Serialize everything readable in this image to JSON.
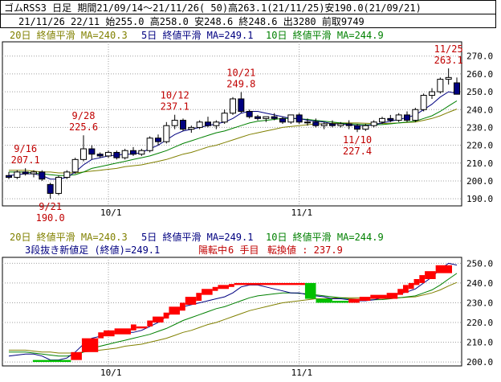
{
  "header": {
    "line1": "ゴムRSS3 日足 期間21/09/14～21/11/26( 50)高263.1(21/11/25)安190.0(21/09/21)",
    "line2": "21/11/26 22/11 始255.0 高258.0 安248.6 終248.6 出3280 前取9749"
  },
  "colors": {
    "ma5": "#000080",
    "ma10": "#008000",
    "ma20": "#808000",
    "up": "#ffffff",
    "down": "#000080",
    "brick_up": "#ff0000",
    "brick_down": "#00c000",
    "annotation": "#c00000"
  },
  "top_legend": {
    "ma20": "20日 終値平滑 MA=240.3",
    "ma5": "5日 終値平滑 MA=249.1",
    "ma10": "10日 終値平滑 MA=244.9"
  },
  "bottom_legend": {
    "ma20": "20日 終値平滑 MA=240.3",
    "ma5": "5日 終値平滑 MA=249.1",
    "ma10": "10日 終値平滑 MA=244.9",
    "status_prefix": "3段抜き新値足 (終値)=249.1",
    "status_trend": "陽転中",
    "status_count": "6 手目",
    "status_turn": "転換値 : 237.9"
  },
  "chart_data": [
    {
      "type": "candlestick",
      "y_ticks": [
        "190.0",
        "200.0",
        "210.0",
        "220.0",
        "230.0",
        "240.0",
        "250.0",
        "260.0",
        "270.0"
      ],
      "ylim": [
        186,
        278
      ],
      "x_labels": [
        {
          "label": "10/1",
          "index": 12
        },
        {
          "label": "11/1",
          "index": 35
        }
      ],
      "annotations": [
        {
          "date": "9/16",
          "value": "207.1",
          "index": 2
        },
        {
          "date": "9/21",
          "value": "190.0",
          "index": 5
        },
        {
          "date": "9/28",
          "value": "225.6",
          "index": 9
        },
        {
          "date": "10/12",
          "value": "237.1",
          "index": 20
        },
        {
          "date": "10/21",
          "value": "249.8",
          "index": 28
        },
        {
          "date": "11/10",
          "value": "227.4",
          "index": 42
        },
        {
          "date": "11/25",
          "value": "263.1",
          "index": 53
        }
      ],
      "candles": [
        [
          203,
          205,
          201,
          202
        ],
        [
          202,
          206,
          201,
          205
        ],
        [
          205,
          207.1,
          203,
          204
        ],
        [
          204,
          206,
          202,
          205
        ],
        [
          205,
          206,
          200,
          201
        ],
        [
          198,
          199,
          190,
          193
        ],
        [
          193,
          203,
          192,
          202
        ],
        [
          202,
          206,
          201,
          205
        ],
        [
          205,
          213,
          204,
          212
        ],
        [
          212,
          225.6,
          211,
          218
        ],
        [
          218,
          220,
          212,
          215
        ],
        [
          215,
          216,
          213,
          214
        ],
        [
          214,
          217,
          213,
          216
        ],
        [
          216,
          217,
          212,
          213
        ],
        [
          213,
          218,
          212,
          217
        ],
        [
          217,
          219,
          214,
          215
        ],
        [
          215,
          218,
          214,
          217
        ],
        [
          217,
          225,
          216,
          224
        ],
        [
          224,
          226,
          220,
          222
        ],
        [
          222,
          233,
          221,
          231
        ],
        [
          231,
          237.1,
          229,
          234
        ],
        [
          234,
          235,
          228,
          229
        ],
        [
          229,
          231,
          227,
          230
        ],
        [
          230,
          234,
          229,
          233
        ],
        [
          233,
          236,
          230,
          231
        ],
        [
          231,
          234,
          229,
          233
        ],
        [
          233,
          240,
          232,
          238
        ],
        [
          238,
          247,
          237,
          246
        ],
        [
          246,
          249.8,
          238,
          239
        ],
        [
          239,
          240,
          235,
          236
        ],
        [
          236,
          237,
          234,
          235
        ],
        [
          235,
          236,
          233,
          236
        ],
        [
          236,
          238,
          234,
          235
        ],
        [
          235,
          236,
          232,
          233
        ],
        [
          233,
          237,
          232,
          237
        ],
        [
          237,
          238,
          232,
          233
        ],
        [
          233,
          235,
          231,
          233
        ],
        [
          233,
          235,
          230,
          231
        ],
        [
          231,
          233,
          229,
          232
        ],
        [
          232,
          234,
          230,
          231
        ],
        [
          231,
          233,
          230,
          232
        ],
        [
          232,
          234,
          229,
          231
        ],
        [
          231,
          232,
          227.4,
          229
        ],
        [
          229,
          232,
          228,
          231
        ],
        [
          231,
          234,
          230,
          233
        ],
        [
          233,
          236,
          232,
          235
        ],
        [
          235,
          237,
          233,
          234
        ],
        [
          234,
          238,
          233,
          237
        ],
        [
          237,
          239,
          233,
          234
        ],
        [
          234,
          241,
          233,
          240
        ],
        [
          240,
          249,
          239,
          248
        ],
        [
          248,
          252,
          246,
          250
        ],
        [
          250,
          258,
          249,
          257
        ],
        [
          257,
          263.1,
          254,
          258
        ],
        [
          255,
          258,
          248.6,
          248.6
        ]
      ],
      "ma5": [
        203,
        203.5,
        204,
        204,
        203,
        201,
        201,
        202,
        205,
        209,
        212,
        213,
        214,
        214.5,
        215,
        215,
        216,
        218,
        220,
        223,
        226,
        228,
        229,
        230,
        231,
        232,
        233,
        235,
        238,
        239,
        239,
        238,
        237,
        236,
        235,
        235,
        234,
        233.5,
        233,
        232,
        232,
        231.5,
        231,
        231,
        231.5,
        232.5,
        233.5,
        234.5,
        235.5,
        237,
        240,
        243,
        247,
        250,
        249.1
      ],
      "ma10": [
        205,
        205,
        205,
        204.5,
        204,
        203.5,
        203,
        203,
        203.5,
        205,
        207,
        208,
        209,
        210,
        211,
        212,
        213,
        214,
        215.5,
        217,
        219,
        221,
        222.5,
        224,
        225.5,
        227,
        228,
        229.5,
        231,
        232.5,
        233.5,
        234,
        234.5,
        235,
        235,
        234.8,
        234.5,
        234,
        233.5,
        233,
        232.5,
        232,
        231.8,
        231.5,
        231.5,
        231.6,
        232,
        232.5,
        233,
        233.5,
        235,
        236.5,
        239,
        242,
        244.9
      ],
      "ma20": [
        206,
        206,
        206,
        205.5,
        205,
        205,
        204.5,
        204.5,
        204.5,
        205,
        205.5,
        206,
        206.5,
        207,
        208,
        208.5,
        209,
        210,
        211,
        212,
        213.5,
        215,
        216,
        217.5,
        219,
        220,
        221.5,
        223,
        224.5,
        226,
        227,
        228,
        229,
        230,
        230.5,
        231,
        231.5,
        232,
        232,
        232.3,
        232.5,
        232.5,
        232.5,
        232.3,
        232.2,
        232.2,
        232.3,
        232.5,
        232.8,
        233,
        234,
        235,
        236.5,
        238.5,
        240.3
      ]
    },
    {
      "type": "new-value-bricks",
      "y_ticks": [
        "200.0",
        "210.0",
        "220.0",
        "230.0",
        "240.0",
        "250.0"
      ],
      "ylim": [
        198,
        253
      ],
      "x_labels": [
        {
          "label": "10/1",
          "index": 12
        },
        {
          "label": "11/1",
          "index": 35
        }
      ],
      "bricks": [
        {
          "from": 5,
          "to": 12,
          "lo": 200,
          "hi": 201,
          "dir": "down"
        },
        {
          "from": 12,
          "to": 14,
          "lo": 201,
          "hi": 205,
          "dir": "up"
        },
        {
          "from": 14,
          "to": 17,
          "lo": 205,
          "hi": 212,
          "dir": "up"
        },
        {
          "from": 17,
          "to": 18,
          "lo": 212,
          "hi": 215,
          "dir": "up"
        },
        {
          "from": 18,
          "to": 20,
          "lo": 213,
          "hi": 216,
          "dir": "up"
        },
        {
          "from": 20,
          "to": 23,
          "lo": 214,
          "hi": 217,
          "dir": "up"
        },
        {
          "from": 23,
          "to": 24,
          "lo": 216,
          "hi": 219,
          "dir": "up"
        },
        {
          "from": 24,
          "to": 26,
          "lo": 217,
          "hi": 218,
          "dir": "up"
        },
        {
          "from": 26,
          "to": 27,
          "lo": 218,
          "hi": 221,
          "dir": "up"
        },
        {
          "from": 27,
          "to": 29,
          "lo": 220,
          "hi": 223,
          "dir": "up"
        },
        {
          "from": 29,
          "to": 30,
          "lo": 222,
          "hi": 225,
          "dir": "up"
        },
        {
          "from": 30,
          "to": 32,
          "lo": 224,
          "hi": 228,
          "dir": "up"
        },
        {
          "from": 32,
          "to": 33,
          "lo": 226,
          "hi": 230,
          "dir": "up"
        },
        {
          "from": 33,
          "to": 35,
          "lo": 229,
          "hi": 233,
          "dir": "up"
        },
        {
          "from": 35,
          "to": 36,
          "lo": 231,
          "hi": 235,
          "dir": "up"
        },
        {
          "from": 36,
          "to": 38,
          "lo": 234,
          "hi": 237,
          "dir": "up"
        },
        {
          "from": 38,
          "to": 39,
          "lo": 236,
          "hi": 238,
          "dir": "up"
        },
        {
          "from": 39,
          "to": 41,
          "lo": 237,
          "hi": 239,
          "dir": "up"
        },
        {
          "from": 41,
          "to": 42,
          "lo": 238,
          "hi": 239.5,
          "dir": "up"
        },
        {
          "from": 42,
          "to": 55,
          "lo": 239,
          "hi": 240,
          "dir": "up"
        },
        {
          "from": 55,
          "to": 57,
          "lo": 232,
          "hi": 240,
          "dir": "down"
        },
        {
          "from": 57,
          "to": 60,
          "lo": 230,
          "hi": 232,
          "dir": "down"
        },
        {
          "from": 60,
          "to": 63,
          "lo": 230,
          "hi": 231,
          "dir": "down"
        },
        {
          "from": 63,
          "to": 65,
          "lo": 230,
          "hi": 232,
          "dir": "up"
        },
        {
          "from": 65,
          "to": 67,
          "lo": 231,
          "hi": 233,
          "dir": "up"
        },
        {
          "from": 67,
          "to": 70,
          "lo": 232,
          "hi": 234,
          "dir": "up"
        },
        {
          "from": 70,
          "to": 72,
          "lo": 232,
          "hi": 235,
          "dir": "up"
        },
        {
          "from": 72,
          "to": 73,
          "lo": 234,
          "hi": 237,
          "dir": "up"
        },
        {
          "from": 73,
          "to": 74,
          "lo": 235,
          "hi": 239,
          "dir": "up"
        },
        {
          "from": 74,
          "to": 75,
          "lo": 237,
          "hi": 240,
          "dir": "up"
        },
        {
          "from": 75,
          "to": 76,
          "lo": 239,
          "hi": 242,
          "dir": "up"
        },
        {
          "from": 76,
          "to": 77,
          "lo": 240,
          "hi": 244,
          "dir": "up"
        },
        {
          "from": 77,
          "to": 79,
          "lo": 242,
          "hi": 246,
          "dir": "up"
        },
        {
          "from": 79,
          "to": 82,
          "lo": 245,
          "hi": 249,
          "dir": "up"
        }
      ],
      "brick_count": 82
    }
  ]
}
